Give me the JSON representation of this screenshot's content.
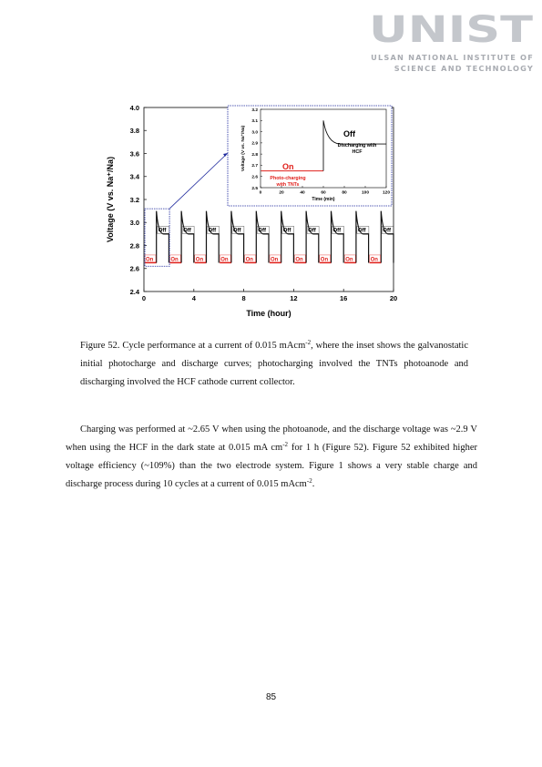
{
  "header": {
    "logo_text": "UNIST",
    "logo_subtitle_1": "ULSAN NATIONAL INSTITUTE OF",
    "logo_subtitle_2": "SCIENCE AND TECHNOLOGY",
    "logo_color": "#c4c7cc"
  },
  "chart_data": {
    "type": "line",
    "xlabel": "Time (hour)",
    "ylabel": "Voltage (V vs. Na⁺/Na)",
    "xlim": [
      0,
      20
    ],
    "ylim": [
      2.4,
      4.0
    ],
    "x_ticks": [
      "0",
      "4",
      "8",
      "12",
      "16",
      "20"
    ],
    "y_ticks": [
      "2.4",
      "2.6",
      "2.8",
      "3.0",
      "3.2",
      "3.4",
      "3.6",
      "3.8",
      "4.0"
    ],
    "cycles": 10,
    "charge_voltage": 2.65,
    "discharge_voltage": 2.9,
    "off_label": "Off",
    "on_label": "On",
    "charge_color": "#e0201b",
    "discharge_color": "#111111",
    "inset": {
      "xlabel": "Time (min)",
      "ylabel": "Voltage (V vs. Na⁺/Na)",
      "xlim": [
        0,
        120
      ],
      "ylim": [
        2.5,
        3.2
      ],
      "x_ticks": [
        "0",
        "20",
        "40",
        "60",
        "80",
        "100",
        "120"
      ],
      "y_ticks": [
        "2.5",
        "2.6",
        "2.7",
        "2.8",
        "2.9",
        "3.0",
        "3.1",
        "3.2"
      ],
      "off_label": "Off",
      "on_label": "On",
      "discharge_note_line1": "Discharging with",
      "discharge_note_line2": "HCF",
      "charge_note_line1": "Photo-charging",
      "charge_note_line2": "with TNTs",
      "box_color": "#1f2a9e"
    }
  },
  "caption": {
    "p1": "Figure 52. Cycle performance at a current of 0.015 mAcm",
    "sup1": "-2",
    "p2": ", where the inset shows the galvanostatic initial photocharge and discharge curves; photocharging involved the TNTs photoanode and discharging involved the HCF cathode current collector."
  },
  "body": {
    "p1": "Charging was performed at ~2.65 V when using the photoanode, and the discharge voltage was ~2.9 V when using the HCF in the dark state at 0.015 mA cm",
    "sup1": "-2",
    "p2": " for 1 h (Figure 52). Figure 52 exhibited higher voltage efficiency (~109%) than the two electrode system. Figure 1 shows a very stable charge and discharge process during 10 cycles at a current of 0.015 mAcm",
    "sup2": "-2",
    "p3": "."
  },
  "page_number": "85"
}
